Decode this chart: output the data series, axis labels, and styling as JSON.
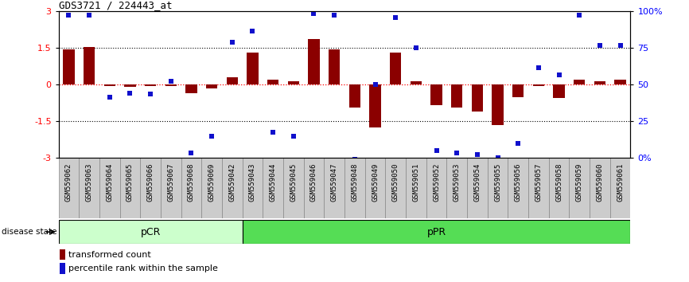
{
  "title": "GDS3721 / 224443_at",
  "samples": [
    "GSM559062",
    "GSM559063",
    "GSM559064",
    "GSM559065",
    "GSM559066",
    "GSM559067",
    "GSM559068",
    "GSM559069",
    "GSM559042",
    "GSM559043",
    "GSM559044",
    "GSM559045",
    "GSM559046",
    "GSM559047",
    "GSM559048",
    "GSM559049",
    "GSM559050",
    "GSM559051",
    "GSM559052",
    "GSM559053",
    "GSM559054",
    "GSM559055",
    "GSM559056",
    "GSM559057",
    "GSM559058",
    "GSM559059",
    "GSM559060",
    "GSM559061"
  ],
  "bar_values": [
    1.45,
    1.55,
    -0.05,
    -0.08,
    -0.05,
    -0.05,
    -0.35,
    -0.15,
    0.3,
    1.3,
    0.2,
    0.15,
    1.85,
    1.45,
    -0.95,
    -1.75,
    1.3,
    0.15,
    -0.85,
    -0.95,
    -1.1,
    -1.65,
    -0.5,
    -0.05,
    -0.55,
    0.2,
    0.15,
    0.2
  ],
  "dot_values": [
    2.85,
    2.85,
    -0.5,
    -0.35,
    -0.38,
    0.15,
    -2.8,
    -2.1,
    1.75,
    2.2,
    -1.95,
    -2.1,
    2.9,
    2.85,
    -3.05,
    0.0,
    2.75,
    1.5,
    -2.7,
    -2.8,
    -2.85,
    -3.0,
    -2.4,
    0.7,
    0.4,
    2.85,
    1.6,
    1.6
  ],
  "pCR_count": 9,
  "bar_color": "#8B0000",
  "dot_color": "#1010CC",
  "ylim": [
    -3.0,
    3.0
  ],
  "y2lim": [
    0,
    100
  ],
  "yticks_left": [
    -3.0,
    -1.5,
    0.0,
    1.5,
    3.0
  ],
  "ytick_labels_left": [
    "-3",
    "-1.5",
    "0",
    "1.5",
    "3"
  ],
  "yticks_right": [
    0,
    25,
    50,
    75,
    100
  ],
  "ytick_labels_right": [
    "0%",
    "25",
    "50",
    "75",
    "100%"
  ],
  "hlines_dotted": [
    1.5,
    -1.5
  ],
  "pCR_color": "#CCFFCC",
  "pPR_color": "#55DD55",
  "disease_state_label": "disease state",
  "legend_bar_label": "transformed count",
  "legend_dot_label": "percentile rank within the sample",
  "bg_color": "#ffffff",
  "label_box_color": "#CCCCCC",
  "label_box_edge": "#888888"
}
